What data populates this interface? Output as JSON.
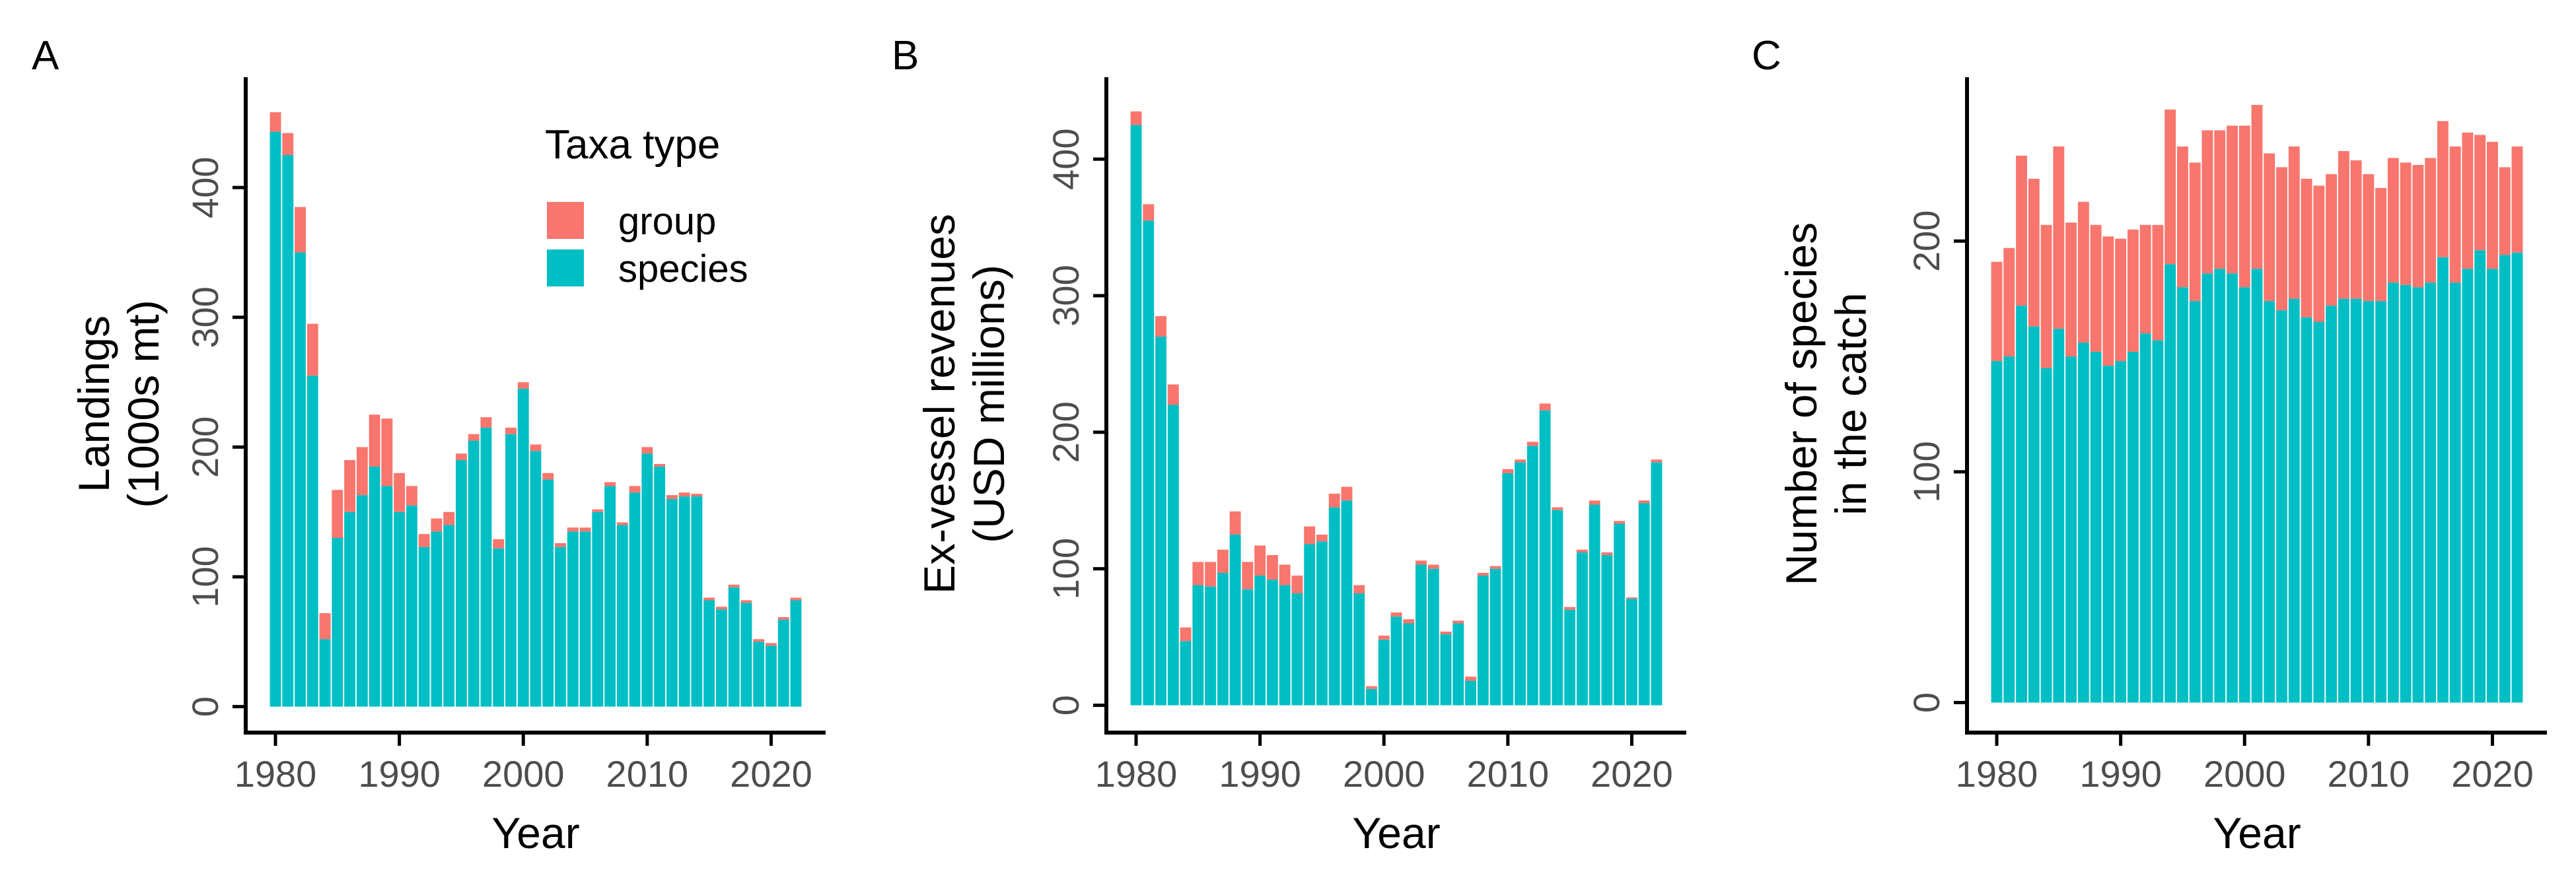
{
  "colors": {
    "group": "#F8766D",
    "species": "#00BFC4",
    "axis": "#000000",
    "tick_label": "#4D4D4D"
  },
  "legend": {
    "title": "Taxa type",
    "items": [
      "group",
      "species"
    ],
    "placement": "top-right of panel A"
  },
  "chart_data": [
    {
      "type": "bar",
      "stacked": true,
      "panel_label": "A",
      "xlabel": "Year",
      "ylabel": [
        "Landings",
        "(1000s mt)"
      ],
      "x": [
        1980,
        1981,
        1982,
        1983,
        1984,
        1985,
        1986,
        1987,
        1988,
        1989,
        1990,
        1991,
        1992,
        1993,
        1994,
        1995,
        1996,
        1997,
        1998,
        1999,
        2000,
        2001,
        2002,
        2003,
        2004,
        2005,
        2006,
        2007,
        2008,
        2009,
        2010,
        2011,
        2012,
        2013,
        2014,
        2015,
        2016,
        2017,
        2018,
        2019,
        2020,
        2021,
        2022
      ],
      "xticks": [
        1980,
        1990,
        2000,
        2010,
        2020
      ],
      "yticks": [
        0,
        100,
        200,
        300,
        400
      ],
      "ylim": [
        -20,
        485
      ],
      "xlim": [
        1977.6,
        2024.4
      ],
      "series": [
        {
          "name": "species",
          "values": [
            443,
            425,
            350,
            255,
            52,
            130,
            150,
            163,
            185,
            170,
            150,
            155,
            123,
            135,
            140,
            190,
            205,
            215,
            122,
            210,
            245,
            197,
            175,
            123,
            135,
            135,
            150,
            170,
            140,
            165,
            195,
            185,
            160,
            162,
            162,
            82,
            75,
            92,
            80,
            50,
            47,
            67,
            82
          ]
        },
        {
          "name": "group",
          "values": [
            15,
            17,
            35,
            40,
            20,
            37,
            40,
            37,
            40,
            52,
            30,
            15,
            10,
            10,
            10,
            5,
            5,
            8,
            7,
            5,
            5,
            5,
            5,
            3,
            3,
            3,
            2,
            3,
            2,
            5,
            5,
            2,
            3,
            3,
            2,
            2,
            2,
            2,
            2,
            2,
            2,
            2,
            2
          ]
        }
      ]
    },
    {
      "type": "bar",
      "stacked": true,
      "panel_label": "B",
      "xlabel": "Year",
      "ylabel": [
        "Ex-vessel revenues",
        "(USD millions)"
      ],
      "x": [
        1980,
        1981,
        1982,
        1983,
        1984,
        1985,
        1986,
        1987,
        1988,
        1989,
        1990,
        1991,
        1992,
        1993,
        1994,
        1995,
        1996,
        1997,
        1998,
        1999,
        2000,
        2001,
        2002,
        2003,
        2004,
        2005,
        2006,
        2007,
        2008,
        2009,
        2010,
        2011,
        2012,
        2013,
        2014,
        2015,
        2016,
        2017,
        2018,
        2019,
        2020,
        2021,
        2022
      ],
      "xticks": [
        1980,
        1990,
        2000,
        2010,
        2020
      ],
      "yticks": [
        0,
        100,
        200,
        300,
        400
      ],
      "ylim": [
        -20,
        460
      ],
      "xlim": [
        1977.6,
        2024.4
      ],
      "series": [
        {
          "name": "species",
          "values": [
            425,
            355,
            270,
            220,
            47,
            88,
            87,
            97,
            125,
            85,
            95,
            92,
            88,
            82,
            118,
            120,
            145,
            150,
            82,
            12,
            48,
            65,
            60,
            103,
            100,
            52,
            60,
            18,
            95,
            100,
            170,
            178,
            190,
            216,
            143,
            70,
            112,
            147,
            110,
            133,
            78,
            148,
            178
          ]
        },
        {
          "name": "group",
          "values": [
            10,
            12,
            15,
            15,
            10,
            17,
            18,
            17,
            17,
            20,
            22,
            18,
            15,
            13,
            13,
            5,
            10,
            10,
            6,
            2,
            3,
            3,
            3,
            3,
            3,
            2,
            2,
            3,
            2,
            2,
            3,
            2,
            3,
            5,
            2,
            2,
            2,
            3,
            2,
            2,
            1,
            2,
            2
          ]
        }
      ]
    },
    {
      "type": "bar",
      "stacked": true,
      "panel_label": "C",
      "xlabel": "Year",
      "ylabel": [
        "Number of species",
        "in the catch"
      ],
      "x": [
        1980,
        1981,
        1982,
        1983,
        1984,
        1985,
        1986,
        1987,
        1988,
        1989,
        1990,
        1991,
        1992,
        1993,
        1994,
        1995,
        1996,
        1997,
        1998,
        1999,
        2000,
        2001,
        2002,
        2003,
        2004,
        2005,
        2006,
        2007,
        2008,
        2009,
        2010,
        2011,
        2012,
        2013,
        2014,
        2015,
        2016,
        2017,
        2018,
        2019,
        2020,
        2021,
        2022
      ],
      "xticks": [
        1980,
        1990,
        2000,
        2010,
        2020
      ],
      "yticks": [
        0,
        100,
        200
      ],
      "ylim": [
        -13,
        271
      ],
      "xlim": [
        1977.6,
        2024.4
      ],
      "series": [
        {
          "name": "species",
          "values": [
            148,
            150,
            172,
            163,
            145,
            162,
            150,
            156,
            152,
            146,
            148,
            152,
            160,
            157,
            190,
            180,
            174,
            186,
            188,
            186,
            180,
            188,
            174,
            170,
            175,
            167,
            165,
            172,
            175,
            175,
            174,
            174,
            182,
            181,
            180,
            182,
            193,
            182,
            188,
            196,
            188,
            194,
            195
          ]
        },
        {
          "name": "group",
          "values": [
            43,
            47,
            65,
            64,
            62,
            79,
            58,
            61,
            55,
            56,
            53,
            53,
            47,
            50,
            67,
            61,
            60,
            62,
            60,
            64,
            70,
            71,
            64,
            62,
            66,
            60,
            59,
            57,
            64,
            60,
            55,
            49,
            54,
            53,
            53,
            54,
            59,
            59,
            59,
            50,
            55,
            38,
            46
          ]
        }
      ]
    }
  ]
}
